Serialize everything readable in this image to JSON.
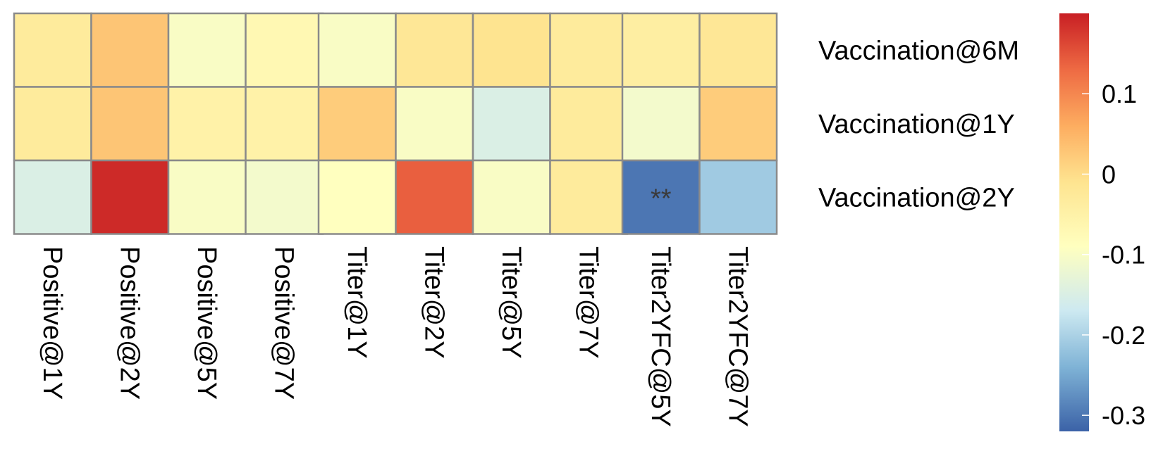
{
  "chart_data": {
    "type": "heatmap",
    "title": "",
    "xlabel": "",
    "ylabel": "",
    "rows": [
      "Vaccination@6M",
      "Vaccination@1Y",
      "Vaccination@2Y"
    ],
    "column_groups": [
      {
        "columns": [
          "Positive@1Y",
          "Positive@2Y",
          "Positive@5Y",
          "Positive@7Y"
        ],
        "values": [
          [
            -0.03,
            0.03,
            -0.1,
            -0.07
          ],
          [
            -0.03,
            0.03,
            -0.05,
            -0.05
          ],
          [
            -0.15,
            0.19,
            -0.1,
            -0.11
          ]
        ]
      },
      {
        "columns": [
          "Titer@1Y",
          "Titer@2Y",
          "Titer@5Y",
          "Titer@7Y"
        ],
        "values": [
          [
            -0.1,
            -0.02,
            -0.01,
            -0.03
          ],
          [
            0.02,
            -0.1,
            -0.15,
            -0.03
          ],
          [
            -0.09,
            0.14,
            -0.1,
            -0.03
          ]
        ]
      },
      {
        "columns": [
          "Titer2YFC@5Y",
          "Titer2YFC@7Y"
        ],
        "values": [
          [
            -0.04,
            -0.02
          ],
          [
            -0.11,
            0.02
          ],
          [
            -0.3,
            -0.21
          ]
        ]
      }
    ],
    "annotations": [
      {
        "row": 2,
        "group": 2,
        "column": 0,
        "text": "**"
      }
    ],
    "color_scale": {
      "min": -0.32,
      "max": 0.2,
      "palette": "RdYlBu (reversed)",
      "stops": [
        {
          "value": -0.32,
          "color": "#3b62a7"
        },
        {
          "value": -0.24,
          "color": "#7fb3d6"
        },
        {
          "value": -0.17,
          "color": "#cde9f1"
        },
        {
          "value": -0.09,
          "color": "#ffffbf"
        },
        {
          "value": -0.01,
          "color": "#fee490"
        },
        {
          "value": 0.06,
          "color": "#fdad60"
        },
        {
          "value": 0.13,
          "color": "#ee6a43"
        },
        {
          "value": 0.2,
          "color": "#c81f24"
        }
      ],
      "ticks": [
        0.1,
        0,
        -0.1,
        -0.2,
        -0.3
      ],
      "tick_labels": [
        "0.1",
        "0",
        "-0.1",
        "-0.2",
        "-0.3"
      ]
    },
    "grid_color": "#8a8a8a",
    "legend": "right"
  }
}
